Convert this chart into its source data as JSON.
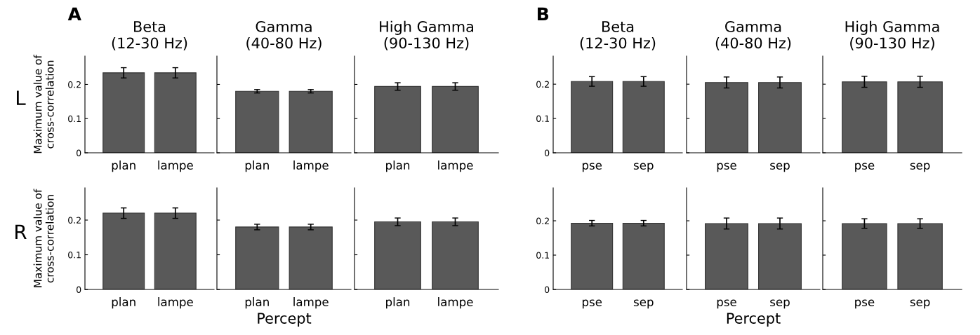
{
  "chart_data": [
    {
      "type": "bar",
      "title": "Beta\n(12-30 Hz)",
      "ylabel": "Maximum value of\ncross-correlation",
      "annotations": [
        "A",
        "L"
      ],
      "categories": [
        "plan",
        "lampe"
      ],
      "values": [
        0.234,
        0.234
      ],
      "errors": [
        0.015,
        0.015
      ],
      "color": "#595959",
      "ylim": [
        0,
        0.283
      ],
      "yticks": [
        0,
        0.1,
        0.2
      ]
    },
    {
      "type": "bar",
      "title": "Gamma\n(40-80 Hz)",
      "categories": [
        "plan",
        "lampe"
      ],
      "values": [
        0.18,
        0.18
      ],
      "errors": [
        0.005,
        0.005
      ],
      "color": "#595959",
      "ylim": [
        0,
        0.283
      ],
      "yticks": [
        0,
        0.1,
        0.2
      ],
      "tick_labels": "x"
    },
    {
      "type": "bar",
      "title": "High Gamma\n(90-130 Hz)",
      "categories": [
        "plan",
        "lampe"
      ],
      "values": [
        0.194,
        0.194
      ],
      "errors": [
        0.011,
        0.011
      ],
      "color": "#595959",
      "ylim": [
        0,
        0.283
      ],
      "yticks": [
        0,
        0.1,
        0.2
      ],
      "tick_labels": "x"
    },
    {
      "type": "bar",
      "title": "Beta\n(12-30 Hz)",
      "annotations": [
        "B"
      ],
      "categories": [
        "pse",
        "sep"
      ],
      "values": [
        0.208,
        0.208
      ],
      "errors": [
        0.014,
        0.014
      ],
      "color": "#595959",
      "ylim": [
        0,
        0.282
      ],
      "yticks": [
        0,
        0.1,
        0.2
      ]
    },
    {
      "type": "bar",
      "title": "Gamma\n(40-80 Hz)",
      "categories": [
        "pse",
        "sep"
      ],
      "values": [
        0.205,
        0.205
      ],
      "errors": [
        0.016,
        0.016
      ],
      "color": "#595959",
      "ylim": [
        0,
        0.282
      ],
      "yticks": [
        0,
        0.1,
        0.2
      ],
      "tick_labels": "x"
    },
    {
      "type": "bar",
      "title": "High Gamma\n(90-130 Hz)",
      "categories": [
        "pse",
        "sep"
      ],
      "values": [
        0.207,
        0.207
      ],
      "errors": [
        0.016,
        0.016
      ],
      "color": "#595959",
      "ylim": [
        0,
        0.282
      ],
      "yticks": [
        0,
        0.1,
        0.2
      ],
      "tick_labels": "x"
    },
    {
      "type": "bar",
      "ylabel": "Maximum value of\ncross-correlation",
      "annotations": [
        "R"
      ],
      "categories": [
        "plan",
        "lampe"
      ],
      "values": [
        0.22,
        0.22
      ],
      "errors": [
        0.015,
        0.015
      ],
      "color": "#595959",
      "ylim": [
        0,
        0.293
      ],
      "yticks": [
        0,
        0.1,
        0.2
      ]
    },
    {
      "type": "bar",
      "xlabel": "Percept",
      "categories": [
        "plan",
        "lampe"
      ],
      "values": [
        0.18,
        0.18
      ],
      "errors": [
        0.008,
        0.008
      ],
      "color": "#595959",
      "ylim": [
        0,
        0.293
      ],
      "yticks": [
        0,
        0.1,
        0.2
      ],
      "tick_labels": "x"
    },
    {
      "type": "bar",
      "categories": [
        "plan",
        "lampe"
      ],
      "values": [
        0.195,
        0.195
      ],
      "errors": [
        0.011,
        0.011
      ],
      "color": "#595959",
      "ylim": [
        0,
        0.293
      ],
      "yticks": [
        0,
        0.1,
        0.2
      ],
      "tick_labels": "x"
    },
    {
      "type": "bar",
      "categories": [
        "pse",
        "sep"
      ],
      "values": [
        0.193,
        0.193
      ],
      "errors": [
        0.008,
        0.008
      ],
      "color": "#595959",
      "ylim": [
        0,
        0.296
      ],
      "yticks": [
        0,
        0.1,
        0.2
      ]
    },
    {
      "type": "bar",
      "xlabel": "Percept",
      "categories": [
        "pse",
        "sep"
      ],
      "values": [
        0.192,
        0.192
      ],
      "errors": [
        0.016,
        0.016
      ],
      "color": "#595959",
      "ylim": [
        0,
        0.296
      ],
      "yticks": [
        0,
        0.1,
        0.2
      ],
      "tick_labels": "x"
    },
    {
      "type": "bar",
      "categories": [
        "pse",
        "sep"
      ],
      "values": [
        0.192,
        0.192
      ],
      "errors": [
        0.014,
        0.014
      ],
      "color": "#595959",
      "ylim": [
        0,
        0.296
      ],
      "yticks": [
        0,
        0.1,
        0.2
      ],
      "tick_labels": "x"
    }
  ]
}
